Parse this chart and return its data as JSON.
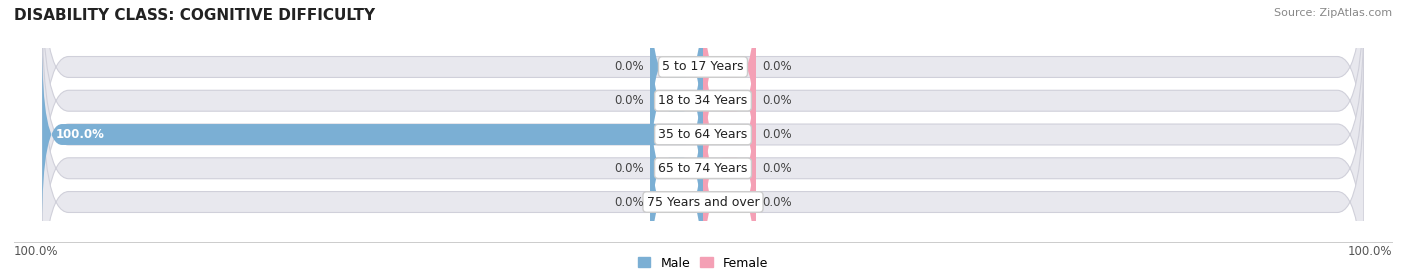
{
  "title": "DISABILITY CLASS: COGNITIVE DIFFICULTY",
  "source": "Source: ZipAtlas.com",
  "categories": [
    "5 to 17 Years",
    "18 to 34 Years",
    "35 to 64 Years",
    "65 to 74 Years",
    "75 Years and over"
  ],
  "male_values": [
    0.0,
    0.0,
    100.0,
    0.0,
    0.0
  ],
  "female_values": [
    0.0,
    0.0,
    0.0,
    0.0,
    0.0
  ],
  "male_color": "#7bafd4",
  "female_color": "#f4a0b5",
  "bar_bg_color": "#e8e8ee",
  "bar_bg_edge_color": "#d0d0da",
  "bar_height": 0.62,
  "xlim_left": -100,
  "xlim_right": 100,
  "min_bar_display": 8.0,
  "title_fontsize": 11,
  "label_fontsize": 9,
  "value_fontsize": 8.5,
  "source_fontsize": 8,
  "legend_fontsize": 9
}
